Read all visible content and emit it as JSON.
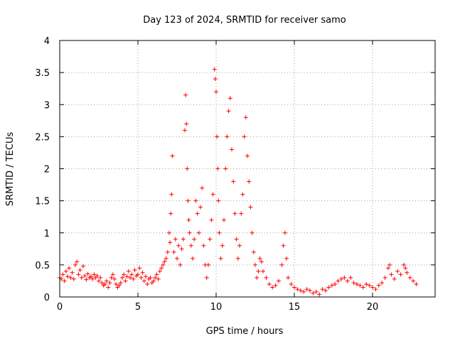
{
  "chart_data": {
    "type": "scatter",
    "title": "Day 123 of 2024, SRMTID for receiver samo",
    "xlabel": "GPS time / hours",
    "ylabel": "SRMTID / TECUs",
    "xlim": [
      0,
      24
    ],
    "ylim": [
      0,
      4
    ],
    "x_ticks": [
      0,
      5,
      10,
      15,
      20
    ],
    "x_tick_labels": [
      "0",
      "5",
      "10",
      "15",
      "20"
    ],
    "y_ticks": [
      0,
      0.5,
      1,
      1.5,
      2,
      2.5,
      3,
      3.5,
      4
    ],
    "y_tick_labels": [
      "0",
      "0.5",
      "1",
      "1.5",
      "2",
      "2.5",
      "3",
      "3.5",
      "4"
    ],
    "grid": true,
    "marker": "+",
    "marker_color": "#ff0000",
    "series": [
      {
        "name": "samo",
        "points": [
          [
            0.0,
            0.3
          ],
          [
            0.1,
            0.28
          ],
          [
            0.2,
            0.35
          ],
          [
            0.3,
            0.25
          ],
          [
            0.4,
            0.4
          ],
          [
            0.5,
            0.32
          ],
          [
            0.6,
            0.45
          ],
          [
            0.7,
            0.3
          ],
          [
            0.8,
            0.38
          ],
          [
            0.9,
            0.28
          ],
          [
            1.0,
            0.5
          ],
          [
            1.1,
            0.55
          ],
          [
            1.2,
            0.35
          ],
          [
            1.3,
            0.42
          ],
          [
            1.4,
            0.3
          ],
          [
            1.5,
            0.48
          ],
          [
            1.6,
            0.33
          ],
          [
            1.7,
            0.27
          ],
          [
            1.8,
            0.36
          ],
          [
            1.9,
            0.3
          ],
          [
            2.0,
            0.32
          ],
          [
            2.1,
            0.28
          ],
          [
            2.2,
            0.35
          ],
          [
            2.3,
            0.3
          ],
          [
            2.4,
            0.33
          ],
          [
            2.5,
            0.25
          ],
          [
            2.6,
            0.3
          ],
          [
            2.7,
            0.22
          ],
          [
            2.8,
            0.18
          ],
          [
            2.9,
            0.2
          ],
          [
            3.0,
            0.25
          ],
          [
            3.1,
            0.15
          ],
          [
            3.2,
            0.22
          ],
          [
            3.3,
            0.3
          ],
          [
            3.4,
            0.35
          ],
          [
            3.5,
            0.28
          ],
          [
            3.6,
            0.2
          ],
          [
            3.7,
            0.15
          ],
          [
            3.8,
            0.18
          ],
          [
            3.9,
            0.22
          ],
          [
            4.0,
            0.3
          ],
          [
            4.1,
            0.35
          ],
          [
            4.2,
            0.25
          ],
          [
            4.3,
            0.32
          ],
          [
            4.4,
            0.4
          ],
          [
            4.5,
            0.3
          ],
          [
            4.6,
            0.35
          ],
          [
            4.7,
            0.28
          ],
          [
            4.8,
            0.42
          ],
          [
            4.9,
            0.33
          ],
          [
            5.0,
            0.35
          ],
          [
            5.1,
            0.45
          ],
          [
            5.2,
            0.3
          ],
          [
            5.3,
            0.38
          ],
          [
            5.4,
            0.25
          ],
          [
            5.5,
            0.32
          ],
          [
            5.6,
            0.2
          ],
          [
            5.7,
            0.28
          ],
          [
            5.8,
            0.3
          ],
          [
            5.9,
            0.22
          ],
          [
            6.0,
            0.25
          ],
          [
            6.1,
            0.3
          ],
          [
            6.2,
            0.35
          ],
          [
            6.3,
            0.28
          ],
          [
            6.4,
            0.4
          ],
          [
            6.5,
            0.45
          ],
          [
            6.6,
            0.5
          ],
          [
            6.7,
            0.55
          ],
          [
            6.8,
            0.6
          ],
          [
            6.9,
            0.7
          ],
          [
            7.0,
            1.0
          ],
          [
            7.05,
            0.85
          ],
          [
            7.1,
            1.3
          ],
          [
            7.15,
            1.6
          ],
          [
            7.2,
            2.2
          ],
          [
            7.3,
            0.7
          ],
          [
            7.4,
            0.9
          ],
          [
            7.5,
            0.6
          ],
          [
            7.6,
            0.8
          ],
          [
            7.7,
            0.5
          ],
          [
            7.8,
            0.75
          ],
          [
            7.9,
            0.9
          ],
          [
            8.0,
            2.6
          ],
          [
            8.05,
            3.15
          ],
          [
            8.1,
            2.7
          ],
          [
            8.15,
            2.0
          ],
          [
            8.2,
            1.5
          ],
          [
            8.25,
            1.2
          ],
          [
            8.3,
            1.0
          ],
          [
            8.4,
            0.8
          ],
          [
            8.5,
            0.6
          ],
          [
            8.6,
            0.9
          ],
          [
            8.7,
            1.5
          ],
          [
            8.8,
            1.3
          ],
          [
            8.9,
            1.0
          ],
          [
            9.0,
            1.4
          ],
          [
            9.1,
            1.7
          ],
          [
            9.2,
            0.8
          ],
          [
            9.3,
            0.5
          ],
          [
            9.4,
            0.3
          ],
          [
            9.5,
            0.5
          ],
          [
            9.6,
            0.9
          ],
          [
            9.7,
            1.2
          ],
          [
            9.8,
            1.6
          ],
          [
            9.9,
            3.55
          ],
          [
            9.95,
            3.4
          ],
          [
            10.0,
            3.2
          ],
          [
            10.05,
            2.5
          ],
          [
            10.1,
            2.0
          ],
          [
            10.15,
            1.5
          ],
          [
            10.2,
            1.0
          ],
          [
            10.3,
            0.6
          ],
          [
            10.4,
            0.8
          ],
          [
            10.5,
            1.2
          ],
          [
            10.6,
            2.0
          ],
          [
            10.7,
            2.5
          ],
          [
            10.8,
            2.9
          ],
          [
            10.9,
            3.1
          ],
          [
            11.0,
            2.3
          ],
          [
            11.1,
            1.8
          ],
          [
            11.2,
            1.3
          ],
          [
            11.3,
            0.9
          ],
          [
            11.4,
            0.6
          ],
          [
            11.5,
            0.8
          ],
          [
            11.6,
            1.3
          ],
          [
            11.7,
            1.6
          ],
          [
            11.8,
            2.5
          ],
          [
            11.9,
            2.8
          ],
          [
            12.0,
            2.2
          ],
          [
            12.1,
            1.8
          ],
          [
            12.2,
            1.4
          ],
          [
            12.3,
            1.0
          ],
          [
            12.4,
            0.7
          ],
          [
            12.5,
            0.5
          ],
          [
            12.6,
            0.3
          ],
          [
            12.7,
            0.4
          ],
          [
            12.8,
            0.6
          ],
          [
            12.9,
            0.55
          ],
          [
            13.0,
            0.4
          ],
          [
            13.2,
            0.3
          ],
          [
            13.4,
            0.2
          ],
          [
            13.6,
            0.15
          ],
          [
            13.8,
            0.18
          ],
          [
            14.0,
            0.25
          ],
          [
            14.2,
            0.5
          ],
          [
            14.3,
            0.8
          ],
          [
            14.4,
            1.0
          ],
          [
            14.5,
            0.6
          ],
          [
            14.6,
            0.3
          ],
          [
            14.8,
            0.2
          ],
          [
            15.0,
            0.15
          ],
          [
            15.2,
            0.12
          ],
          [
            15.4,
            0.1
          ],
          [
            15.6,
            0.08
          ],
          [
            15.8,
            0.12
          ],
          [
            16.0,
            0.1
          ],
          [
            16.2,
            0.06
          ],
          [
            16.4,
            0.08
          ],
          [
            16.6,
            0.04
          ],
          [
            16.8,
            0.12
          ],
          [
            17.0,
            0.1
          ],
          [
            17.2,
            0.15
          ],
          [
            17.4,
            0.18
          ],
          [
            17.6,
            0.2
          ],
          [
            17.8,
            0.25
          ],
          [
            18.0,
            0.28
          ],
          [
            18.2,
            0.3
          ],
          [
            18.4,
            0.25
          ],
          [
            18.6,
            0.3
          ],
          [
            18.8,
            0.22
          ],
          [
            19.0,
            0.2
          ],
          [
            19.2,
            0.18
          ],
          [
            19.4,
            0.15
          ],
          [
            19.6,
            0.2
          ],
          [
            19.8,
            0.18
          ],
          [
            20.0,
            0.15
          ],
          [
            20.2,
            0.12
          ],
          [
            20.4,
            0.18
          ],
          [
            20.6,
            0.22
          ],
          [
            20.8,
            0.3
          ],
          [
            21.0,
            0.45
          ],
          [
            21.1,
            0.5
          ],
          [
            21.2,
            0.35
          ],
          [
            21.4,
            0.28
          ],
          [
            21.6,
            0.4
          ],
          [
            21.8,
            0.35
          ],
          [
            22.0,
            0.5
          ],
          [
            22.1,
            0.45
          ],
          [
            22.2,
            0.38
          ],
          [
            22.4,
            0.3
          ],
          [
            22.6,
            0.25
          ],
          [
            22.8,
            0.2
          ]
        ]
      }
    ]
  }
}
